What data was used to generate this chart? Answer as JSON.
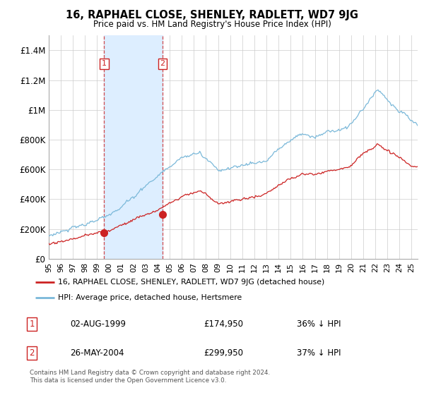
{
  "title": "16, RAPHAEL CLOSE, SHENLEY, RADLETT, WD7 9JG",
  "subtitle": "Price paid vs. HM Land Registry's House Price Index (HPI)",
  "ylim": [
    0,
    1500000
  ],
  "yticks": [
    0,
    200000,
    400000,
    600000,
    800000,
    1000000,
    1200000,
    1400000
  ],
  "ytick_labels": [
    "£0",
    "£200K",
    "£400K",
    "£600K",
    "£800K",
    "£1M",
    "£1.2M",
    "£1.4M"
  ],
  "sale1_date_num": 1999.58,
  "sale1_price": 174950,
  "sale1_label": "1",
  "sale2_date_num": 2004.4,
  "sale2_price": 299950,
  "sale2_label": "2",
  "hpi_color": "#7ab8d9",
  "price_color": "#cc2222",
  "shaded_region_color": "#ddeeff",
  "grid_color": "#cccccc",
  "legend1_label": "16, RAPHAEL CLOSE, SHENLEY, RADLETT, WD7 9JG (detached house)",
  "legend2_label": "HPI: Average price, detached house, Hertsmere",
  "footer_text": "Contains HM Land Registry data © Crown copyright and database right 2024.\nThis data is licensed under the Open Government Licence v3.0.",
  "table_rows": [
    [
      "1",
      "02-AUG-1999",
      "£174,950",
      "36% ↓ HPI"
    ],
    [
      "2",
      "26-MAY-2004",
      "£299,950",
      "37% ↓ HPI"
    ]
  ],
  "xlim_start": 1995.0,
  "xlim_end": 2025.5,
  "n_points": 365
}
